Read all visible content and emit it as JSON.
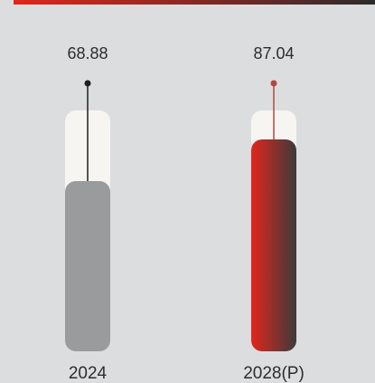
{
  "colors": {
    "background": "#dcdddf",
    "top_bar_start": "#e1261c",
    "top_bar_end": "#2b2b2b",
    "track": "#f7f5f2",
    "bar_2024": "#9a9b9d",
    "bar_2028_start": "#e1261c",
    "bar_2028_end": "#3d3a3a",
    "marker_2024": "#1f1f1f",
    "marker_2028": "#b3483d"
  },
  "chart_data": {
    "type": "bar",
    "categories": [
      "2024",
      "2028(P)"
    ],
    "values": [
      68.88,
      87.04
    ],
    "value_labels": [
      "68.88",
      "87.04"
    ],
    "title": "",
    "xlabel": "",
    "ylabel": "",
    "ylim": [
      0,
      100
    ],
    "grid": false,
    "legend": "none"
  }
}
